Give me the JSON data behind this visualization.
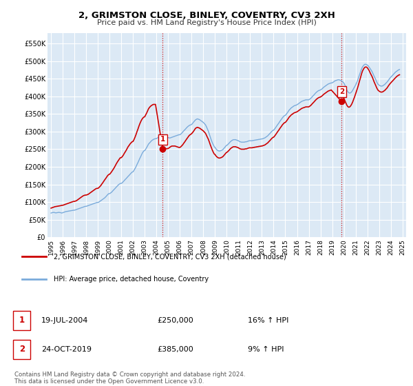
{
  "title": "2, GRIMSTON CLOSE, BINLEY, COVENTRY, CV3 2XH",
  "subtitle": "Price paid vs. HM Land Registry's House Price Index (HPI)",
  "background_color": "#ffffff",
  "plot_bg_color": "#dce9f5",
  "grid_color": "#ffffff",
  "sale1_date": "19-JUL-2004",
  "sale1_price": 250000,
  "sale1_hpi": "16% ↑ HPI",
  "sale2_date": "24-OCT-2019",
  "sale2_price": 385000,
  "sale2_hpi": "9% ↑ HPI",
  "legend_label1": "2, GRIMSTON CLOSE, BINLEY, COVENTRY, CV3 2XH (detached house)",
  "legend_label2": "HPI: Average price, detached house, Coventry",
  "footer": "Contains HM Land Registry data © Crown copyright and database right 2024.\nThis data is licensed under the Open Government Licence v3.0.",
  "line1_color": "#cc0000",
  "line2_color": "#7aabdb",
  "sale_marker_color": "#cc0000",
  "dashed_line_color": "#cc0000",
  "ylim_min": 0,
  "ylim_max": 580000,
  "yticks": [
    0,
    50000,
    100000,
    150000,
    200000,
    250000,
    300000,
    350000,
    400000,
    450000,
    500000,
    550000
  ],
  "ytick_labels": [
    "£0",
    "£50K",
    "£100K",
    "£150K",
    "£200K",
    "£250K",
    "£300K",
    "£350K",
    "£400K",
    "£450K",
    "£500K",
    "£550K"
  ],
  "hpi_x": [
    1995.0,
    1995.08,
    1995.17,
    1995.25,
    1995.33,
    1995.42,
    1995.5,
    1995.58,
    1995.67,
    1995.75,
    1995.83,
    1995.92,
    1996.0,
    1996.08,
    1996.17,
    1996.25,
    1996.33,
    1996.42,
    1996.5,
    1996.58,
    1996.67,
    1996.75,
    1996.83,
    1996.92,
    1997.0,
    1997.08,
    1997.17,
    1997.25,
    1997.33,
    1997.42,
    1997.5,
    1997.58,
    1997.67,
    1997.75,
    1997.83,
    1997.92,
    1998.0,
    1998.08,
    1998.17,
    1998.25,
    1998.33,
    1998.42,
    1998.5,
    1998.58,
    1998.67,
    1998.75,
    1998.83,
    1998.92,
    1999.0,
    1999.08,
    1999.17,
    1999.25,
    1999.33,
    1999.42,
    1999.5,
    1999.58,
    1999.67,
    1999.75,
    1999.83,
    1999.92,
    2000.0,
    2000.08,
    2000.17,
    2000.25,
    2000.33,
    2000.42,
    2000.5,
    2000.58,
    2000.67,
    2000.75,
    2000.83,
    2000.92,
    2001.0,
    2001.08,
    2001.17,
    2001.25,
    2001.33,
    2001.42,
    2001.5,
    2001.58,
    2001.67,
    2001.75,
    2001.83,
    2001.92,
    2002.0,
    2002.08,
    2002.17,
    2002.25,
    2002.33,
    2002.42,
    2002.5,
    2002.58,
    2002.67,
    2002.75,
    2002.83,
    2002.92,
    2003.0,
    2003.08,
    2003.17,
    2003.25,
    2003.33,
    2003.42,
    2003.5,
    2003.58,
    2003.67,
    2003.75,
    2003.83,
    2003.92,
    2004.0,
    2004.08,
    2004.17,
    2004.25,
    2004.33,
    2004.42,
    2004.5,
    2004.58,
    2004.67,
    2004.75,
    2004.83,
    2004.92,
    2005.0,
    2005.08,
    2005.17,
    2005.25,
    2005.33,
    2005.42,
    2005.5,
    2005.58,
    2005.67,
    2005.75,
    2005.83,
    2005.92,
    2006.0,
    2006.08,
    2006.17,
    2006.25,
    2006.33,
    2006.42,
    2006.5,
    2006.58,
    2006.67,
    2006.75,
    2006.83,
    2006.92,
    2007.0,
    2007.08,
    2007.17,
    2007.25,
    2007.33,
    2007.42,
    2007.5,
    2007.58,
    2007.67,
    2007.75,
    2007.83,
    2007.92,
    2008.0,
    2008.08,
    2008.17,
    2008.25,
    2008.33,
    2008.42,
    2008.5,
    2008.58,
    2008.67,
    2008.75,
    2008.83,
    2008.92,
    2009.0,
    2009.08,
    2009.17,
    2009.25,
    2009.33,
    2009.42,
    2009.5,
    2009.58,
    2009.67,
    2009.75,
    2009.83,
    2009.92,
    2010.0,
    2010.08,
    2010.17,
    2010.25,
    2010.33,
    2010.42,
    2010.5,
    2010.58,
    2010.67,
    2010.75,
    2010.83,
    2010.92,
    2011.0,
    2011.08,
    2011.17,
    2011.25,
    2011.33,
    2011.42,
    2011.5,
    2011.58,
    2011.67,
    2011.75,
    2011.83,
    2011.92,
    2012.0,
    2012.08,
    2012.17,
    2012.25,
    2012.33,
    2012.42,
    2012.5,
    2012.58,
    2012.67,
    2012.75,
    2012.83,
    2012.92,
    2013.0,
    2013.08,
    2013.17,
    2013.25,
    2013.33,
    2013.42,
    2013.5,
    2013.58,
    2013.67,
    2013.75,
    2013.83,
    2013.92,
    2014.0,
    2014.08,
    2014.17,
    2014.25,
    2014.33,
    2014.42,
    2014.5,
    2014.58,
    2014.67,
    2014.75,
    2014.83,
    2014.92,
    2015.0,
    2015.08,
    2015.17,
    2015.25,
    2015.33,
    2015.42,
    2015.5,
    2015.58,
    2015.67,
    2015.75,
    2015.83,
    2015.92,
    2016.0,
    2016.08,
    2016.17,
    2016.25,
    2016.33,
    2016.42,
    2016.5,
    2016.58,
    2016.67,
    2016.75,
    2016.83,
    2016.92,
    2017.0,
    2017.08,
    2017.17,
    2017.25,
    2017.33,
    2017.42,
    2017.5,
    2017.58,
    2017.67,
    2017.75,
    2017.83,
    2017.92,
    2018.0,
    2018.08,
    2018.17,
    2018.25,
    2018.33,
    2018.42,
    2018.5,
    2018.58,
    2018.67,
    2018.75,
    2018.83,
    2018.92,
    2019.0,
    2019.08,
    2019.17,
    2019.25,
    2019.33,
    2019.42,
    2019.5,
    2019.58,
    2019.67,
    2019.75,
    2019.83,
    2019.92,
    2020.0,
    2020.08,
    2020.17,
    2020.25,
    2020.33,
    2020.42,
    2020.5,
    2020.58,
    2020.67,
    2020.75,
    2020.83,
    2020.92,
    2021.0,
    2021.08,
    2021.17,
    2021.25,
    2021.33,
    2021.42,
    2021.5,
    2021.58,
    2021.67,
    2021.75,
    2021.83,
    2021.92,
    2022.0,
    2022.08,
    2022.17,
    2022.25,
    2022.33,
    2022.42,
    2022.5,
    2022.58,
    2022.67,
    2022.75,
    2022.83,
    2022.92,
    2023.0,
    2023.08,
    2023.17,
    2023.25,
    2023.33,
    2023.42,
    2023.5,
    2023.58,
    2023.67,
    2023.75,
    2023.83,
    2023.92,
    2024.0,
    2024.08,
    2024.17,
    2024.25,
    2024.33,
    2024.42,
    2024.5,
    2024.58,
    2024.67,
    2024.75
  ],
  "hpi_y": [
    69000,
    70000,
    70500,
    71000,
    70000,
    69500,
    70000,
    70500,
    71000,
    70500,
    70000,
    69000,
    70000,
    71000,
    72000,
    73000,
    73500,
    74000,
    74500,
    75000,
    75500,
    76000,
    76500,
    77000,
    77000,
    78000,
    79000,
    80000,
    81000,
    82000,
    83000,
    84000,
    85000,
    86000,
    87000,
    88000,
    88000,
    89000,
    90000,
    91000,
    92000,
    93000,
    94000,
    95000,
    96000,
    97000,
    98000,
    99000,
    99000,
    100000,
    102000,
    104000,
    106000,
    108000,
    110000,
    112000,
    115000,
    118000,
    121000,
    124000,
    124000,
    126000,
    128000,
    131000,
    134000,
    137000,
    140000,
    143000,
    146000,
    149000,
    151000,
    153000,
    153000,
    155000,
    158000,
    161000,
    164000,
    167000,
    170000,
    173000,
    176000,
    179000,
    182000,
    185000,
    186000,
    190000,
    195000,
    200000,
    206000,
    212000,
    218000,
    224000,
    230000,
    236000,
    241000,
    245000,
    246000,
    250000,
    255000,
    260000,
    265000,
    268000,
    271000,
    274000,
    276000,
    278000,
    279000,
    280000,
    280000,
    282000,
    284000,
    286000,
    287000,
    287000,
    287000,
    287000,
    286000,
    285000,
    284000,
    283000,
    283000,
    282000,
    282000,
    283000,
    284000,
    285000,
    286000,
    287000,
    288000,
    289000,
    290000,
    291000,
    291000,
    293000,
    296000,
    299000,
    302000,
    305000,
    308000,
    311000,
    314000,
    316000,
    318000,
    319000,
    320000,
    323000,
    327000,
    330000,
    333000,
    335000,
    336000,
    335000,
    334000,
    332000,
    330000,
    328000,
    326000,
    323000,
    320000,
    315000,
    309000,
    302000,
    294000,
    286000,
    277000,
    270000,
    264000,
    258000,
    255000,
    251000,
    248000,
    246000,
    245000,
    245000,
    246000,
    247000,
    249000,
    252000,
    255000,
    259000,
    261000,
    263000,
    266000,
    269000,
    272000,
    274000,
    276000,
    277000,
    277000,
    277000,
    276000,
    275000,
    274000,
    272000,
    271000,
    270000,
    270000,
    270000,
    270000,
    271000,
    271000,
    272000,
    273000,
    274000,
    274000,
    274000,
    274000,
    275000,
    275000,
    276000,
    276000,
    277000,
    277000,
    278000,
    278000,
    279000,
    279000,
    280000,
    281000,
    282000,
    284000,
    286000,
    288000,
    291000,
    294000,
    297000,
    300000,
    303000,
    304000,
    307000,
    311000,
    315000,
    319000,
    323000,
    327000,
    331000,
    335000,
    339000,
    342000,
    345000,
    346000,
    349000,
    353000,
    357000,
    361000,
    364000,
    367000,
    369000,
    371000,
    373000,
    374000,
    375000,
    376000,
    378000,
    380000,
    382000,
    384000,
    386000,
    387000,
    388000,
    389000,
    390000,
    390000,
    390000,
    390000,
    392000,
    394000,
    397000,
    400000,
    403000,
    406000,
    409000,
    412000,
    414000,
    416000,
    417000,
    418000,
    420000,
    422000,
    425000,
    427000,
    429000,
    431000,
    433000,
    435000,
    436000,
    437000,
    438000,
    438000,
    440000,
    442000,
    444000,
    445000,
    446000,
    447000,
    447000,
    446000,
    445000,
    443000,
    440000,
    438000,
    432000,
    425000,
    418000,
    413000,
    410000,
    409000,
    410000,
    413000,
    417000,
    422000,
    427000,
    432000,
    438000,
    445000,
    453000,
    461000,
    469000,
    477000,
    483000,
    487000,
    490000,
    491000,
    490000,
    489000,
    486000,
    482000,
    478000,
    474000,
    469000,
    463000,
    457000,
    451000,
    445000,
    439000,
    434000,
    432000,
    430000,
    429000,
    429000,
    430000,
    432000,
    434000,
    437000,
    440000,
    443000,
    447000,
    451000,
    454000,
    457000,
    460000,
    463000,
    466000,
    469000,
    471000,
    473000,
    475000,
    476000
  ],
  "pp_x": [
    1995.0,
    1995.08,
    1995.17,
    1995.25,
    1995.33,
    1995.42,
    1995.5,
    1995.58,
    1995.67,
    1995.75,
    1995.83,
    1995.92,
    1996.0,
    1996.08,
    1996.17,
    1996.25,
    1996.33,
    1996.42,
    1996.5,
    1996.58,
    1996.67,
    1996.75,
    1996.83,
    1996.92,
    1997.0,
    1997.08,
    1997.17,
    1997.25,
    1997.33,
    1997.42,
    1997.5,
    1997.58,
    1997.67,
    1997.75,
    1997.83,
    1997.92,
    1998.0,
    1998.08,
    1998.17,
    1998.25,
    1998.33,
    1998.42,
    1998.5,
    1998.58,
    1998.67,
    1998.75,
    1998.83,
    1998.92,
    1999.0,
    1999.08,
    1999.17,
    1999.25,
    1999.33,
    1999.42,
    1999.5,
    1999.58,
    1999.67,
    1999.75,
    1999.83,
    1999.92,
    2000.0,
    2000.08,
    2000.17,
    2000.25,
    2000.33,
    2000.42,
    2000.5,
    2000.58,
    2000.67,
    2000.75,
    2000.83,
    2000.92,
    2001.0,
    2001.08,
    2001.17,
    2001.25,
    2001.33,
    2001.42,
    2001.5,
    2001.58,
    2001.67,
    2001.75,
    2001.83,
    2001.92,
    2002.0,
    2002.08,
    2002.17,
    2002.25,
    2002.33,
    2002.42,
    2002.5,
    2002.58,
    2002.67,
    2002.75,
    2002.83,
    2002.92,
    2003.0,
    2003.08,
    2003.17,
    2003.25,
    2003.33,
    2003.42,
    2003.5,
    2003.58,
    2003.67,
    2003.75,
    2003.83,
    2003.92,
    2004.54,
    2005.0,
    2005.08,
    2005.17,
    2005.25,
    2005.33,
    2005.42,
    2005.5,
    2005.58,
    2005.67,
    2005.75,
    2005.83,
    2005.92,
    2006.0,
    2006.08,
    2006.17,
    2006.25,
    2006.33,
    2006.42,
    2006.5,
    2006.58,
    2006.67,
    2006.75,
    2006.83,
    2006.92,
    2007.0,
    2007.08,
    2007.17,
    2007.25,
    2007.33,
    2007.42,
    2007.5,
    2007.58,
    2007.67,
    2007.75,
    2007.83,
    2007.92,
    2008.0,
    2008.08,
    2008.17,
    2008.25,
    2008.33,
    2008.42,
    2008.5,
    2008.58,
    2008.67,
    2008.75,
    2008.83,
    2008.92,
    2009.0,
    2009.08,
    2009.17,
    2009.25,
    2009.33,
    2009.42,
    2009.5,
    2009.58,
    2009.67,
    2009.75,
    2009.83,
    2009.92,
    2010.0,
    2010.08,
    2010.17,
    2010.25,
    2010.33,
    2010.42,
    2010.5,
    2010.58,
    2010.67,
    2010.75,
    2010.83,
    2010.92,
    2011.0,
    2011.08,
    2011.17,
    2011.25,
    2011.33,
    2011.42,
    2011.5,
    2011.58,
    2011.67,
    2011.75,
    2011.83,
    2011.92,
    2012.0,
    2012.08,
    2012.17,
    2012.25,
    2012.33,
    2012.42,
    2012.5,
    2012.58,
    2012.67,
    2012.75,
    2012.83,
    2012.92,
    2013.0,
    2013.08,
    2013.17,
    2013.25,
    2013.33,
    2013.42,
    2013.5,
    2013.58,
    2013.67,
    2013.75,
    2013.83,
    2013.92,
    2014.0,
    2014.08,
    2014.17,
    2014.25,
    2014.33,
    2014.42,
    2014.5,
    2014.58,
    2014.67,
    2014.75,
    2014.83,
    2014.92,
    2015.0,
    2015.08,
    2015.17,
    2015.25,
    2015.33,
    2015.42,
    2015.5,
    2015.58,
    2015.67,
    2015.75,
    2015.83,
    2015.92,
    2016.0,
    2016.08,
    2016.17,
    2016.25,
    2016.33,
    2016.42,
    2016.5,
    2016.58,
    2016.67,
    2016.75,
    2016.83,
    2016.92,
    2017.0,
    2017.08,
    2017.17,
    2017.25,
    2017.33,
    2017.42,
    2017.5,
    2017.58,
    2017.67,
    2017.75,
    2017.83,
    2017.92,
    2018.0,
    2018.08,
    2018.17,
    2018.25,
    2018.33,
    2018.42,
    2018.5,
    2018.58,
    2018.67,
    2018.75,
    2018.83,
    2018.92,
    2019.81,
    2020.0,
    2020.08,
    2020.17,
    2020.25,
    2020.33,
    2020.42,
    2020.5,
    2020.58,
    2020.67,
    2020.75,
    2020.83,
    2020.92,
    2021.0,
    2021.08,
    2021.17,
    2021.25,
    2021.33,
    2021.42,
    2021.5,
    2021.58,
    2021.67,
    2021.75,
    2021.83,
    2021.92,
    2022.0,
    2022.08,
    2022.17,
    2022.25,
    2022.33,
    2022.42,
    2022.5,
    2022.58,
    2022.67,
    2022.75,
    2022.83,
    2022.92,
    2023.0,
    2023.08,
    2023.17,
    2023.25,
    2023.33,
    2023.42,
    2023.5,
    2023.58,
    2023.67,
    2023.75,
    2023.83,
    2023.92,
    2024.0,
    2024.08,
    2024.17,
    2024.25,
    2024.33,
    2024.42,
    2024.5,
    2024.58,
    2024.67,
    2024.75
  ],
  "pp_y": [
    83000,
    84000,
    85000,
    86000,
    87000,
    87500,
    88000,
    88500,
    89000,
    89500,
    90000,
    91000,
    91000,
    92000,
    93000,
    94000,
    95000,
    96000,
    97000,
    98000,
    99000,
    100000,
    101000,
    102000,
    102000,
    103000,
    104000,
    106000,
    108000,
    110000,
    112000,
    114000,
    116000,
    118000,
    119000,
    120000,
    120000,
    121000,
    122000,
    124000,
    126000,
    128000,
    130000,
    132000,
    134000,
    136000,
    138000,
    139000,
    139000,
    141000,
    144000,
    147000,
    151000,
    155000,
    159000,
    163000,
    167000,
    171000,
    175000,
    178000,
    179000,
    182000,
    186000,
    190000,
    194000,
    199000,
    204000,
    209000,
    214000,
    218000,
    222000,
    226000,
    226000,
    229000,
    233000,
    238000,
    242000,
    247000,
    252000,
    257000,
    261000,
    265000,
    268000,
    271000,
    272000,
    277000,
    284000,
    291000,
    299000,
    307000,
    315000,
    322000,
    329000,
    334000,
    338000,
    341000,
    342000,
    347000,
    353000,
    359000,
    365000,
    369000,
    372000,
    374000,
    376000,
    377000,
    377000,
    377000,
    250000,
    252000,
    254000,
    256000,
    258000,
    259000,
    259000,
    259000,
    259000,
    258000,
    257000,
    256000,
    255000,
    255000,
    257000,
    260000,
    263000,
    267000,
    271000,
    275000,
    279000,
    283000,
    287000,
    290000,
    292000,
    294000,
    297000,
    301000,
    305000,
    309000,
    311000,
    312000,
    311000,
    310000,
    308000,
    306000,
    304000,
    302000,
    299000,
    296000,
    291000,
    285000,
    279000,
    272000,
    264000,
    256000,
    249000,
    243000,
    237000,
    235000,
    231000,
    228000,
    226000,
    225000,
    225000,
    226000,
    227000,
    229000,
    232000,
    235000,
    239000,
    241000,
    243000,
    246000,
    249000,
    252000,
    254000,
    256000,
    257000,
    257000,
    257000,
    256000,
    255000,
    254000,
    252000,
    251000,
    250000,
    250000,
    250000,
    250000,
    251000,
    251000,
    252000,
    253000,
    254000,
    254000,
    254000,
    254000,
    255000,
    255000,
    256000,
    256000,
    257000,
    257000,
    258000,
    258000,
    259000,
    259000,
    260000,
    261000,
    262000,
    264000,
    266000,
    268000,
    271000,
    274000,
    277000,
    280000,
    283000,
    284000,
    287000,
    291000,
    295000,
    299000,
    303000,
    307000,
    311000,
    315000,
    319000,
    322000,
    325000,
    326000,
    329000,
    333000,
    337000,
    341000,
    344000,
    347000,
    349000,
    351000,
    353000,
    354000,
    355000,
    356000,
    358000,
    360000,
    362000,
    364000,
    366000,
    367000,
    368000,
    369000,
    370000,
    370000,
    370000,
    370000,
    372000,
    374000,
    377000,
    380000,
    383000,
    386000,
    389000,
    392000,
    394000,
    396000,
    397000,
    398000,
    400000,
    402000,
    405000,
    407000,
    409000,
    411000,
    413000,
    415000,
    416000,
    417000,
    418000,
    385000,
    395000,
    388000,
    381000,
    375000,
    371000,
    369000,
    370000,
    373000,
    378000,
    384000,
    391000,
    399000,
    407000,
    415000,
    424000,
    433000,
    443000,
    453000,
    463000,
    471000,
    477000,
    481000,
    483000,
    483000,
    481000,
    477000,
    472000,
    466000,
    461000,
    455000,
    448000,
    441000,
    434000,
    428000,
    422000,
    417000,
    415000,
    413000,
    412000,
    412000,
    413000,
    415000,
    417000,
    420000,
    423000,
    427000,
    431000,
    435000,
    438000,
    441000,
    444000,
    447000,
    450000,
    453000,
    456000,
    458000,
    460000,
    461000
  ],
  "sale1_x": 2004.54,
  "sale1_y": 250000,
  "sale2_x": 2019.81,
  "sale2_y": 385000,
  "xtick_years": [
    1995,
    1996,
    1997,
    1998,
    1999,
    2000,
    2001,
    2002,
    2003,
    2004,
    2005,
    2006,
    2007,
    2008,
    2009,
    2010,
    2011,
    2012,
    2013,
    2014,
    2015,
    2016,
    2017,
    2018,
    2019,
    2020,
    2021,
    2022,
    2023,
    2024,
    2025
  ]
}
